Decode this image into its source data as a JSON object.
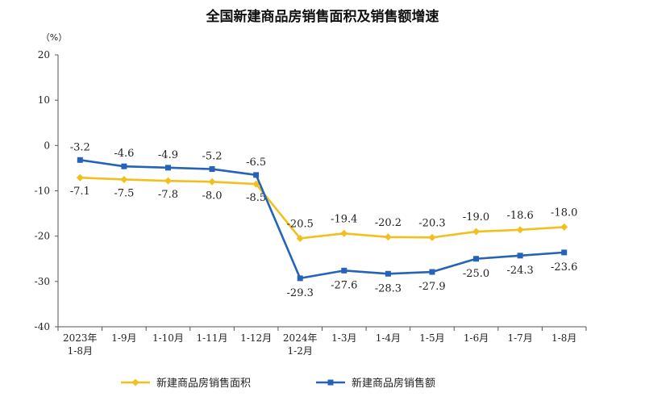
{
  "chart_data": {
    "type": "line",
    "title": "全国新建商品房销售面积及销售额增速",
    "ylabel": "（%）",
    "xlabel": "",
    "ylim": [
      -40,
      20
    ],
    "yticks": [
      20,
      10,
      0,
      -10,
      -20,
      -30,
      -40
    ],
    "grid": false,
    "legend_position": "bottom",
    "categories": [
      [
        "2023年",
        "1-8月"
      ],
      [
        "1-9月"
      ],
      [
        "1-10月"
      ],
      [
        "1-11月"
      ],
      [
        "1-12月"
      ],
      [
        "2024年",
        "1-2月"
      ],
      [
        "1-3月"
      ],
      [
        "1-4月"
      ],
      [
        "1-5月"
      ],
      [
        "1-6月"
      ],
      [
        "1-7月"
      ],
      [
        "1-8月"
      ]
    ],
    "series": [
      {
        "name": "新建商品房销售面积",
        "color": "#F2C01E",
        "marker": "diamond",
        "label_position": "below-then-above",
        "values": [
          -7.1,
          -7.5,
          -7.8,
          -8.0,
          -8.5,
          -20.5,
          -19.4,
          -20.2,
          -20.3,
          -19.0,
          -18.6,
          -18.0
        ]
      },
      {
        "name": "新建商品房销售额",
        "color": "#2563B8",
        "marker": "square",
        "label_position": "above-then-below",
        "values": [
          -3.2,
          -4.6,
          -4.9,
          -5.2,
          -6.5,
          -29.3,
          -27.6,
          -28.3,
          -27.9,
          -25.0,
          -24.3,
          -23.6
        ]
      }
    ]
  }
}
